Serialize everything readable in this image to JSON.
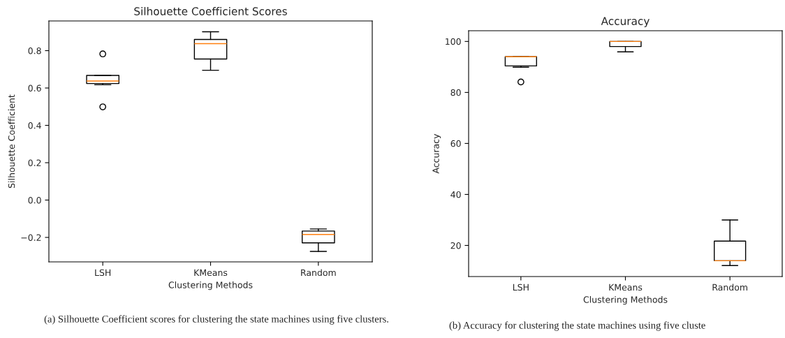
{
  "chart_data": [
    {
      "type": "box",
      "title": "Silhouette Coefficient Scores",
      "xlabel": "Clustering Methods",
      "ylabel": "Silhouette Coefficient",
      "categories": [
        "LSH",
        "KMeans",
        "Random"
      ],
      "boxes": [
        {
          "low": 0.6175,
          "q1": 0.624,
          "median": 0.6375,
          "q3": 0.6675,
          "high": 0.6675,
          "outliers": [
            0.7825,
            0.499
          ]
        },
        {
          "low": 0.695,
          "q1": 0.755,
          "median": 0.8375,
          "q3": 0.86,
          "high": 0.901
        },
        {
          "low": -0.275,
          "q1": -0.229,
          "median": -0.184,
          "q3": -0.166,
          "high": -0.155
        }
      ],
      "ylim": [
        -0.331,
        0.959
      ],
      "yticks": [
        {
          "value": -0.2,
          "label": "−0.2"
        },
        {
          "value": 0,
          "label": "0.0"
        },
        0.2,
        0.4,
        0.6,
        0.8
      ],
      "grid": false,
      "legend": false,
      "annotations": [
        "(a) Silhouette Coefficient scores for clustering the state machines using five clusters."
      ]
    },
    {
      "type": "box",
      "title": "Accuracy",
      "xlabel": "Clustering Methods",
      "ylabel": "Accuracy",
      "categories": [
        "LSH",
        "KMeans",
        "Random"
      ],
      "boxes": [
        {
          "low": 89.9,
          "q1": 90.4,
          "median": 94.0,
          "q3": 94.0,
          "high": 94.0,
          "outliers": [
            84.1
          ]
        },
        {
          "low": 95.9,
          "q1": 98.0,
          "median": 100.0,
          "q3": 100.0,
          "high": 100.0
        },
        {
          "low": 12.1,
          "q1": 14.0,
          "median": 14.0,
          "q3": 21.7,
          "high": 30.0
        }
      ],
      "ylim": [
        7.8,
        104.2
      ],
      "yticks": [
        20,
        40,
        60,
        80,
        100
      ],
      "grid": false,
      "legend": false,
      "annotations": [
        "(b) Accuracy for clustering the state machines using five cluste"
      ]
    }
  ]
}
